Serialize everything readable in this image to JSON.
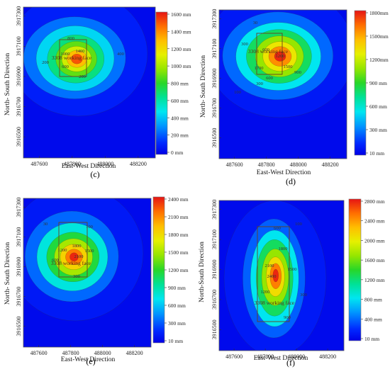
{
  "chart_data": [
    {
      "type": "heatmap",
      "panel_label": "(c)",
      "xlabel": "East-West Direction",
      "ylabel": "North- South Direction",
      "x_ticks": [
        "487600",
        "487800",
        "488000",
        "488200"
      ],
      "y_ticks": [
        "3917300",
        "3917100",
        "3916900",
        "3916700",
        "3916500"
      ],
      "colorbar_ticks": [
        "0 mm",
        "200 mm",
        "400 mm",
        "600 mm",
        "800 mm",
        "1000 mm",
        "1200 mm",
        "1400 mm",
        "1600 mm"
      ],
      "vmax": 1600,
      "peak": {
        "x": 487820,
        "y": 3916990,
        "value": 1650
      },
      "contour_labels": [
        "800",
        "1000",
        "1400",
        "600",
        "200",
        "400",
        "200"
      ],
      "working_face_label": "3308 working face"
    },
    {
      "type": "heatmap",
      "panel_label": "(d)",
      "xlabel": "East-West Direction",
      "ylabel": "North- South Direction",
      "x_ticks": [
        "487600",
        "487800",
        "488000",
        "488200"
      ],
      "y_ticks": [
        "3917300",
        "3917100",
        "3916900",
        "3916700",
        "3916500"
      ],
      "colorbar_ticks": [
        "10 mm",
        "300 mm",
        "600 mm",
        "900 mm",
        "1200mm",
        "1500mm",
        "1800mm"
      ],
      "vmax": 1800,
      "peak": {
        "x": 487850,
        "y": 3916900,
        "value": 1850
      },
      "contour_labels": [
        "300",
        "600",
        "1200",
        "1700",
        "1500",
        "900",
        "600",
        "300",
        "100",
        "30"
      ],
      "working_face_label": "3308 working face"
    },
    {
      "type": "heatmap",
      "panel_label": "(e)",
      "xlabel": "East-West Direction",
      "ylabel": "North- South Direction",
      "x_ticks": [
        "487600",
        "487800",
        "488000",
        "488200"
      ],
      "y_ticks": [
        "3917300",
        "3917100",
        "3916900",
        "3916700",
        "3916500"
      ],
      "colorbar_ticks": [
        "10 mm",
        "300 mm",
        "600 mm",
        "900 mm",
        "1200 mm",
        "1500 mm",
        "1800 mm",
        "2100 mm",
        "2400 mm"
      ],
      "vmax": 2400,
      "peak": {
        "x": 487870,
        "y": 3916880,
        "value": 2450
      },
      "contour_labels": [
        "1800",
        "1200",
        "2100",
        "1500",
        "600",
        "300",
        "30",
        "100"
      ],
      "working_face_label": "3308 working face"
    },
    {
      "type": "heatmap",
      "panel_label": "(f)",
      "xlabel": "East-West Direction",
      "ylabel": "North-South Direction",
      "x_ticks": [
        "487600",
        "487800",
        "488000",
        "488200"
      ],
      "y_ticks": [
        "3917300",
        "3917100",
        "3916900",
        "3916700",
        "3916500"
      ],
      "colorbar_ticks": [
        "10 mm",
        "400 mm",
        "800 mm",
        "1200 mm",
        "1600 mm",
        "2000 mm",
        "2400 mm",
        "2800 mm"
      ],
      "vmax": 2800,
      "peak": {
        "x": 487880,
        "y": 3916800,
        "value": 2850
      },
      "contour_labels": [
        "600",
        "1800",
        "2100",
        "2400",
        "1500",
        "1200",
        "300",
        "900",
        "100"
      ],
      "working_face_label": "3308 working face"
    }
  ]
}
